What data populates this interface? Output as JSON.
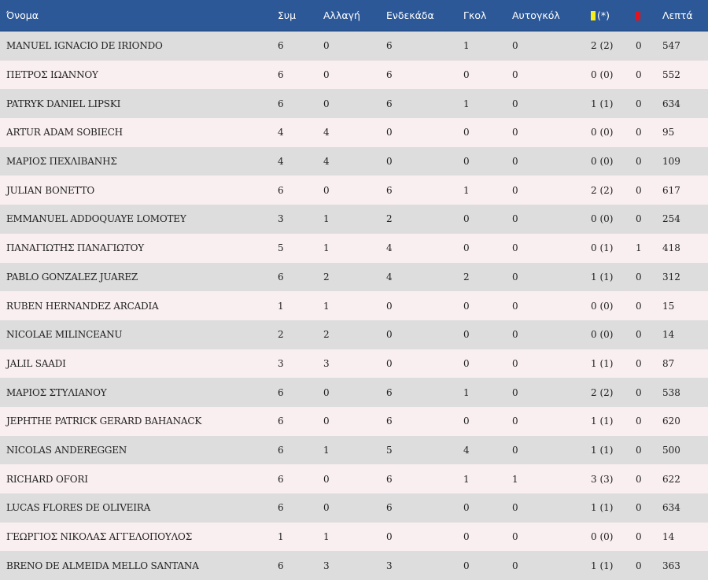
{
  "colors": {
    "header_bg": "#2c5898",
    "row_odd": "#dddddd",
    "row_even": "#f9eff0",
    "yellow_card": "#f5ee1a",
    "red_card": "#e3141e"
  },
  "header": {
    "name": "Όνομα",
    "appearances": "Συμ",
    "substitute": "Αλλαγή",
    "starting": "Ενδεκάδα",
    "goals": "Γκολ",
    "own_goals": "Αυτογκόλ",
    "yellow_icon": "yellow-card-icon",
    "yellow_suffix": "(*)",
    "red_icon": "red-card-icon",
    "minutes": "Λεπτά"
  },
  "rows": [
    {
      "name": "MANUEL IGNACIO DE IRIONDO",
      "apps": "6",
      "sub": "0",
      "start": "6",
      "goals": "1",
      "own": "0",
      "yellow": "2 (2)",
      "red": "0",
      "min": "547"
    },
    {
      "name": "ΠΕΤΡΟΣ ΙΩΑΝΝΟΥ",
      "apps": "6",
      "sub": "0",
      "start": "6",
      "goals": "0",
      "own": "0",
      "yellow": "0 (0)",
      "red": "0",
      "min": "552"
    },
    {
      "name": "PATRYK DANIEL LIPSKI",
      "apps": "6",
      "sub": "0",
      "start": "6",
      "goals": "1",
      "own": "0",
      "yellow": "1 (1)",
      "red": "0",
      "min": "634"
    },
    {
      "name": "ARTUR ADAM SOBIECH",
      "apps": "4",
      "sub": "4",
      "start": "0",
      "goals": "0",
      "own": "0",
      "yellow": "0 (0)",
      "red": "0",
      "min": "95"
    },
    {
      "name": "ΜΑΡΙΟΣ ΠΕΧΛΙΒΑΝΗΣ",
      "apps": "4",
      "sub": "4",
      "start": "0",
      "goals": "0",
      "own": "0",
      "yellow": "0 (0)",
      "red": "0",
      "min": "109"
    },
    {
      "name": "JULIAN BONETTO",
      "apps": "6",
      "sub": "0",
      "start": "6",
      "goals": "1",
      "own": "0",
      "yellow": "2 (2)",
      "red": "0",
      "min": "617"
    },
    {
      "name": "EMMANUEL ADDOQUAYE LOMOTEY",
      "apps": "3",
      "sub": "1",
      "start": "2",
      "goals": "0",
      "own": "0",
      "yellow": "0 (0)",
      "red": "0",
      "min": "254"
    },
    {
      "name": "ΠΑΝΑΓΙΩΤΗΣ ΠΑΝΑΓΙΩΤΟΥ",
      "apps": "5",
      "sub": "1",
      "start": "4",
      "goals": "0",
      "own": "0",
      "yellow": "0 (1)",
      "red": "1",
      "min": "418"
    },
    {
      "name": "PABLO GONZALEZ JUAREZ",
      "apps": "6",
      "sub": "2",
      "start": "4",
      "goals": "2",
      "own": "0",
      "yellow": "1 (1)",
      "red": "0",
      "min": "312"
    },
    {
      "name": "RUBEN HERNANDEZ ARCADIA",
      "apps": "1",
      "sub": "1",
      "start": "0",
      "goals": "0",
      "own": "0",
      "yellow": "0 (0)",
      "red": "0",
      "min": "15"
    },
    {
      "name": "NICOLAE MILINCEANU",
      "apps": "2",
      "sub": "2",
      "start": "0",
      "goals": "0",
      "own": "0",
      "yellow": "0 (0)",
      "red": "0",
      "min": "14"
    },
    {
      "name": "JALIL SAADI",
      "apps": "3",
      "sub": "3",
      "start": "0",
      "goals": "0",
      "own": "0",
      "yellow": "1 (1)",
      "red": "0",
      "min": "87"
    },
    {
      "name": "ΜΑΡΙΟΣ ΣΤΥΛΙΑΝΟΥ",
      "apps": "6",
      "sub": "0",
      "start": "6",
      "goals": "1",
      "own": "0",
      "yellow": "2 (2)",
      "red": "0",
      "min": "538"
    },
    {
      "name": "JEPHTHE PATRICK GERARD BAHANACK",
      "apps": "6",
      "sub": "0",
      "start": "6",
      "goals": "0",
      "own": "0",
      "yellow": "1 (1)",
      "red": "0",
      "min": "620"
    },
    {
      "name": "NICOLAS ANDEREGGEN",
      "apps": "6",
      "sub": "1",
      "start": "5",
      "goals": "4",
      "own": "0",
      "yellow": "1 (1)",
      "red": "0",
      "min": "500"
    },
    {
      "name": "RICHARD OFORI",
      "apps": "6",
      "sub": "0",
      "start": "6",
      "goals": "1",
      "own": "1",
      "yellow": "3 (3)",
      "red": "0",
      "min": "622"
    },
    {
      "name": "LUCAS FLORES DE OLIVEIRA",
      "apps": "6",
      "sub": "0",
      "start": "6",
      "goals": "0",
      "own": "0",
      "yellow": "1 (1)",
      "red": "0",
      "min": "634"
    },
    {
      "name": "ΓΕΩΡΓΙΟΣ ΝΙΚΟΛΑΣ ΑΓΓΕΛΟΠΟΥΛΟΣ",
      "apps": "1",
      "sub": "1",
      "start": "0",
      "goals": "0",
      "own": "0",
      "yellow": "0 (0)",
      "red": "0",
      "min": "14"
    },
    {
      "name": "BRENO DE ALMEIDA MELLO SANTANA",
      "apps": "6",
      "sub": "3",
      "start": "3",
      "goals": "0",
      "own": "0",
      "yellow": "1 (1)",
      "red": "0",
      "min": "363"
    }
  ]
}
